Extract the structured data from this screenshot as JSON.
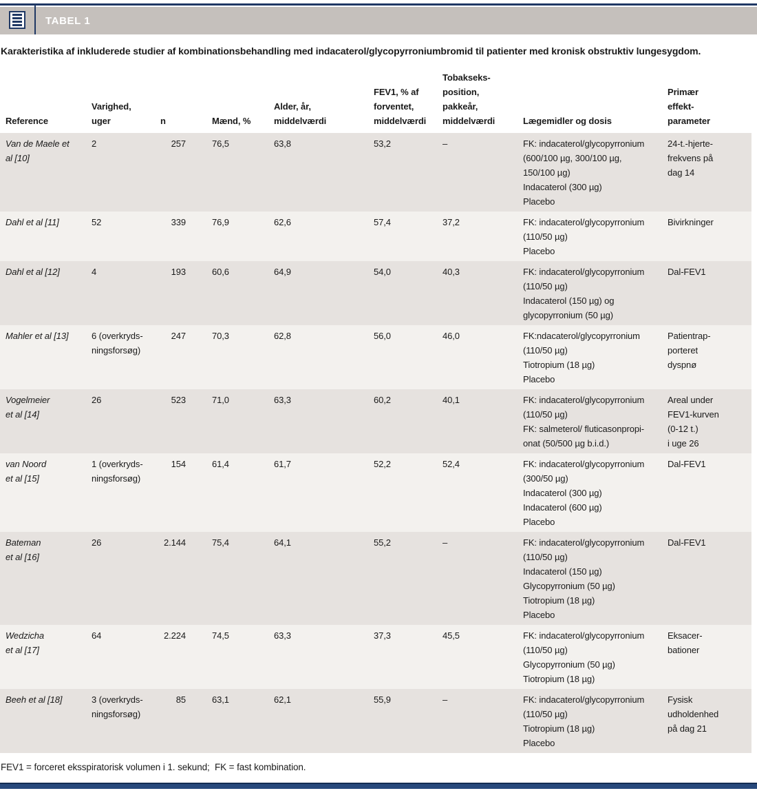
{
  "header": {
    "tabel_label": "TABEL 1"
  },
  "caption": "Karakteristika af inkluderede studier af kombinationsbehandling med indacaterol/glycopyrroniumbromid til patienter med kronisk obstruktiv lungesygdom.",
  "table": {
    "columns": [
      "Reference",
      "Varighed,\nuger",
      "n",
      "Mænd, %",
      "Alder, år,\nmiddelværdi",
      "FEV1, % af\nforventet,\nmiddelværdi",
      "Tobakseks-\nposition,\npakkeår,\nmiddelværdi",
      "Lægemidler og dosis",
      "Primær\neffekt-\nparameter"
    ],
    "rows": [
      {
        "cells": [
          "Van de Maele et\nal [10]",
          "2",
          "257",
          "76,5",
          "63,8",
          "53,2",
          "–",
          "FK: indacaterol/glycopyrronium\n(600/100 µg, 300/100 µg,\n150/100 µg)\nIndacaterol (300 µg)\nPlacebo",
          "24-t.-hjerte-\nfrekvens på\ndag 14"
        ]
      },
      {
        "cells": [
          "Dahl et al [11]",
          "52",
          "339",
          "76,9",
          "62,6",
          "57,4",
          "37,2",
          "FK: indacaterol/glycopyrronium\n(110/50 µg)\nPlacebo",
          "Bivirkninger"
        ]
      },
      {
        "cells": [
          "Dahl et al [12]",
          "4",
          "193",
          "60,6",
          "64,9",
          "54,0",
          "40,3",
          "FK: indacaterol/glycopyrronium\n(110/50 µg)\nIndacaterol (150 µg) og\nglycopyrronium (50 µg)",
          "Dal-FEV1"
        ]
      },
      {
        "cells": [
          "Mahler et al [13]",
          "6 (overkryds-\nningsforsøg)",
          "247",
          "70,3",
          "62,8",
          "56,0",
          "46,0",
          "FK:ndacaterol/glycopyrronium\n(110/50 µg)\nTiotropium (18 µg)\nPlacebo",
          "Patientrap-\nporteret\ndyspnø"
        ]
      },
      {
        "cells": [
          "Vogelmeier\net al [14]",
          "26",
          "523",
          "71,0",
          "63,3",
          "60,2",
          "40,1",
          "FK: indacaterol/glycopyrronium\n(110/50 µg)\nFK: salmeterol/ fluticasonpropi-\nonat (50/500 µg b.i.d.)",
          "Areal under\nFEV1-kurven\n(0-12 t.)\ni uge 26"
        ]
      },
      {
        "cells": [
          "van Noord\net al [15]",
          "1 (overkryds-\nningsforsøg)",
          "154",
          "61,4",
          "61,7",
          "52,2",
          "52,4",
          "FK: indacaterol/glycopyrronium\n(300/50 µg)\nIndacaterol (300 µg)\nIndacaterol (600 µg)\nPlacebo",
          "Dal-FEV1"
        ]
      },
      {
        "cells": [
          "Bateman\net al [16]",
          "26",
          "2.144",
          "75,4",
          "64,1",
          "55,2",
          "–",
          "FK: indacaterol/glycopyrronium\n(110/50 µg)\nIndacaterol (150 µg)\nGlycopyrronium (50 µg)\nTiotropium (18 µg)\nPlacebo",
          "Dal-FEV1"
        ]
      },
      {
        "cells": [
          "Wedzicha\net al [17]",
          "64",
          "2.224",
          "74,5",
          "63,3",
          "37,3",
          "45,5",
          "FK: indacaterol/glycopyrronium\n(110/50 µg)\nGlycopyrronium (50 µg)\nTiotropium (18 µg)",
          "Eksacer-\nbationer"
        ]
      },
      {
        "cells": [
          "Beeh et al [18]",
          "3 (overkryds-\nningsforsøg)",
          "85",
          "63,1",
          "62,1",
          "55,9",
          "–",
          "FK: indacaterol/glycopyrronium\n(110/50 µg)\nTiotropium (18 µg)\nPlacebo",
          "Fysisk\nudholdenhed\npå dag 21"
        ]
      }
    ]
  },
  "footnote": "FEV1 = forceret eksspiratorisk volumen i 1. sekund;  FK = fast kombination.",
  "colors": {
    "accent_navy": "#1f3864",
    "bar_navy": "#27497c",
    "title_bar_gray": "#c5c0bc",
    "row_dark": "#e6e2df",
    "row_light": "#f3f1ee",
    "text": "#1a1a1a"
  }
}
